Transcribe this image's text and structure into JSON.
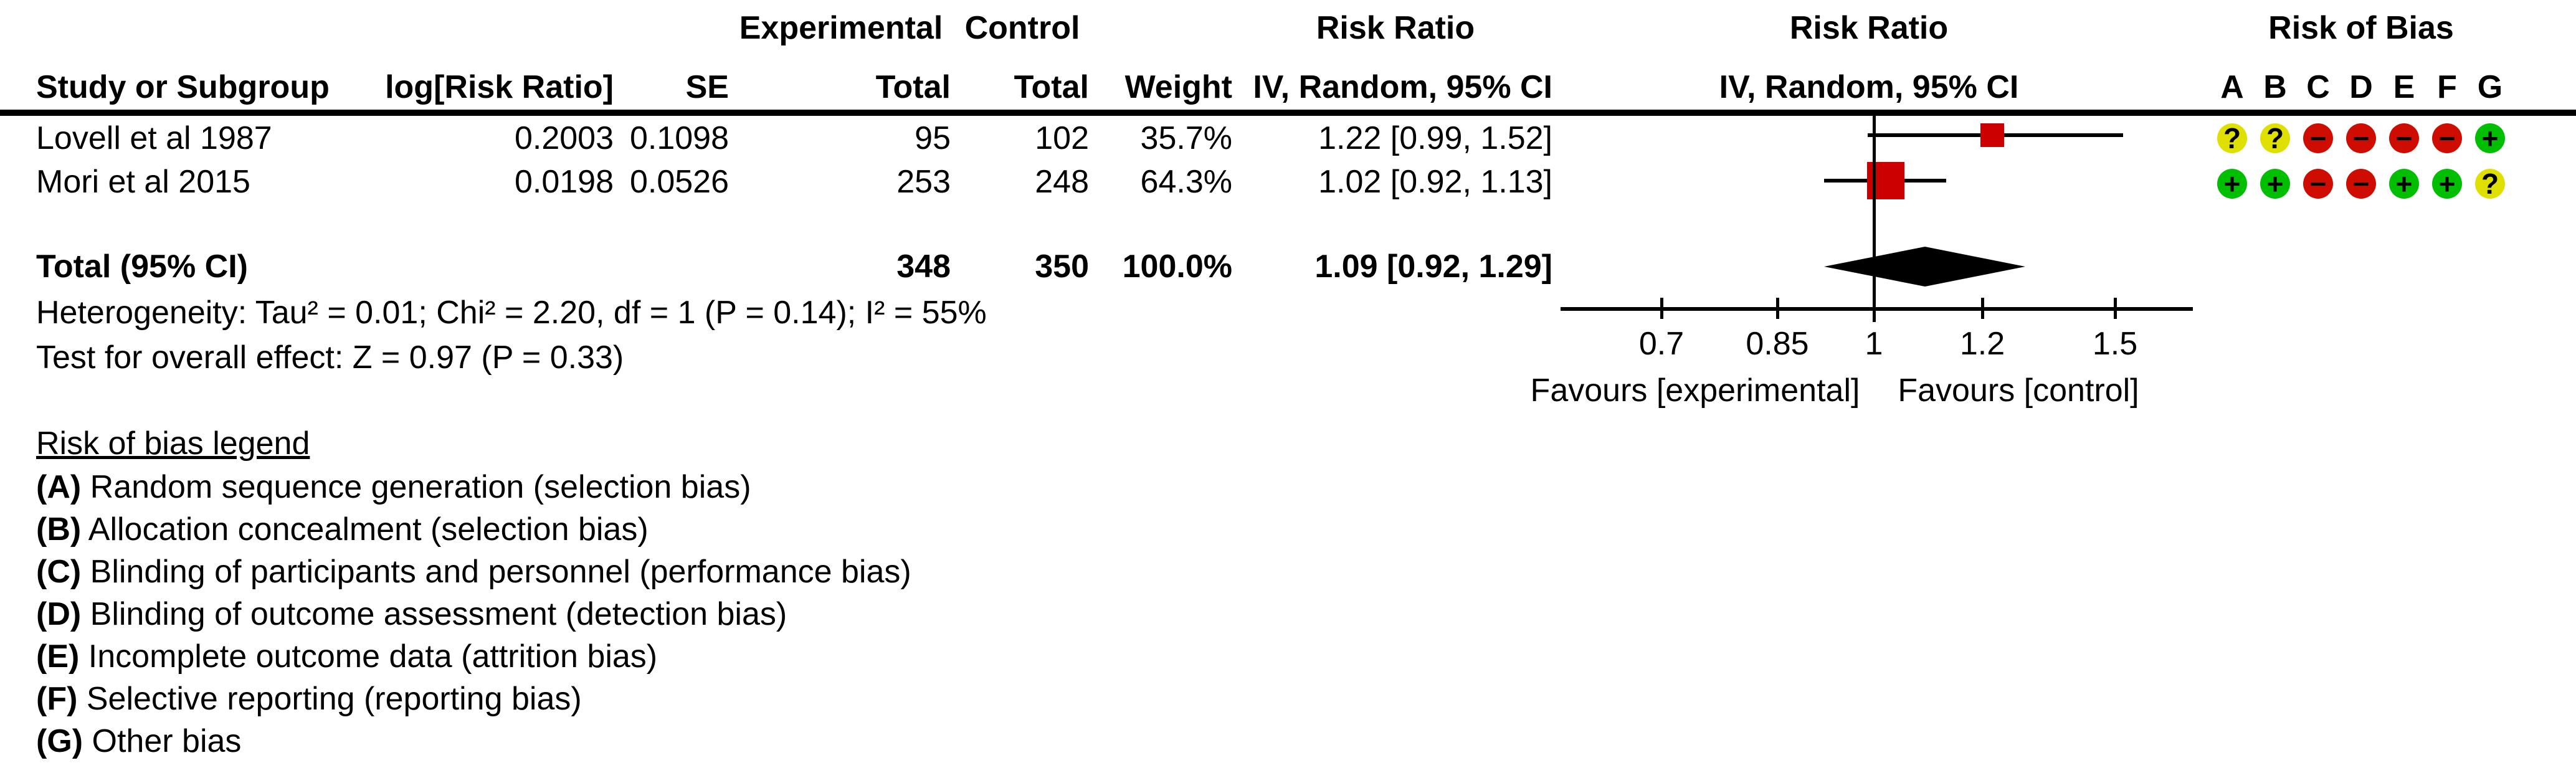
{
  "header": {
    "group_experimental": "Experimental",
    "group_control": "Control",
    "risk_ratio_text_col": "Risk Ratio",
    "risk_ratio_plot_col": "Risk Ratio",
    "risk_of_bias": "Risk of Bias"
  },
  "columns": {
    "study": "Study or Subgroup",
    "log_rr": "log[Risk Ratio]",
    "se": "SE",
    "exp_total": "Total",
    "ctrl_total": "Total",
    "weight": "Weight",
    "ci": "IV, Random, 95% CI",
    "ci_plot": "IV, Random, 95% CI",
    "bias_letters": [
      "A",
      "B",
      "C",
      "D",
      "E",
      "F",
      "G"
    ]
  },
  "chart_data": {
    "type": "forest",
    "effect_measure": "Risk Ratio",
    "model": "IV, Random, 95% CI",
    "x_scale": "log",
    "axis_ticks": [
      0.7,
      0.85,
      1,
      1.2,
      1.5
    ],
    "favours_left": "Favours [experimental]",
    "favours_right": "Favours [control]",
    "studies": [
      {
        "name": "Lovell et al 1987",
        "log_rr": "0.2003",
        "se": "0.1098",
        "exp_total": "95",
        "ctrl_total": "102",
        "weight": "35.7%",
        "weight_pct": 35.7,
        "ci_text": "1.22 [0.99, 1.52]",
        "rr": 1.22,
        "ci_low": 0.99,
        "ci_high": 1.52,
        "bias": [
          "?",
          "?",
          "-",
          "-",
          "-",
          "-",
          "+"
        ]
      },
      {
        "name": "Mori et al 2015",
        "log_rr": "0.0198",
        "se": "0.0526",
        "exp_total": "253",
        "ctrl_total": "248",
        "weight": "64.3%",
        "weight_pct": 64.3,
        "ci_text": "1.02 [0.92, 1.13]",
        "rr": 1.02,
        "ci_low": 0.92,
        "ci_high": 1.13,
        "bias": [
          "+",
          "+",
          "-",
          "-",
          "+",
          "+",
          "?"
        ]
      }
    ],
    "total": {
      "label": "Total (95% CI)",
      "exp_total": "348",
      "ctrl_total": "350",
      "weight": "100.0%",
      "ci_text": "1.09 [0.92, 1.29]",
      "rr": 1.09,
      "ci_low": 0.92,
      "ci_high": 1.29
    },
    "heterogeneity": "Heterogeneity: Tau² = 0.01; Chi² = 2.20, df = 1 (P = 0.14); I² = 55%",
    "overall_effect": "Test for overall effect: Z = 0.97 (P = 0.33)"
  },
  "bias_legend": {
    "title": "Risk of bias legend",
    "items": [
      {
        "key": "(A)",
        "text": "Random sequence generation (selection bias)"
      },
      {
        "key": "(B)",
        "text": "Allocation concealment (selection bias)"
      },
      {
        "key": "(C)",
        "text": "Blinding of participants and personnel (performance bias)"
      },
      {
        "key": "(D)",
        "text": "Blinding of outcome assessment (detection bias)"
      },
      {
        "key": "(E)",
        "text": "Incomplete outcome data (attrition bias)"
      },
      {
        "key": "(F)",
        "text": "Selective reporting (reporting bias)"
      },
      {
        "key": "(G)",
        "text": "Other bias"
      }
    ]
  },
  "colors": {
    "marker": "#CC0000",
    "bias_low": "#00BE00",
    "bias_high": "#CE0D00",
    "bias_unclear": "#E0E000",
    "line": "#000000"
  }
}
